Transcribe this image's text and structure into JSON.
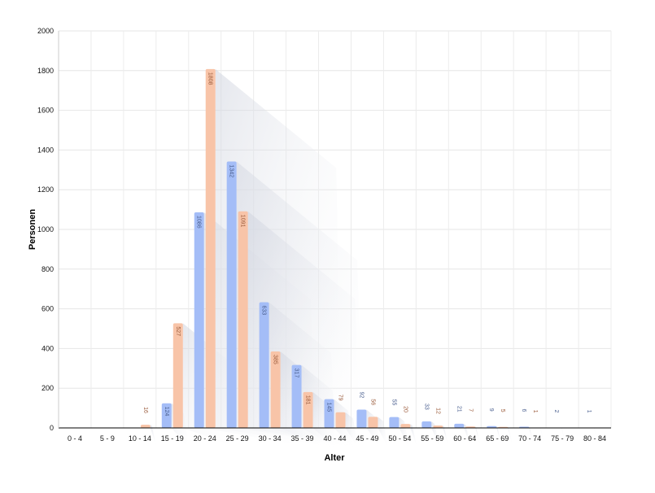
{
  "chart_data": {
    "type": "bar",
    "title": "",
    "xlabel": "Alter",
    "ylabel": "Personen",
    "ylim": [
      0,
      2000
    ],
    "yticks": [
      0,
      200,
      400,
      600,
      800,
      1000,
      1200,
      1400,
      1600,
      1800,
      2000
    ],
    "grid": true,
    "legend": "none",
    "categories": [
      "0 - 4",
      "5 - 9",
      "10 - 14",
      "15 - 19",
      "20 - 24",
      "25 - 29",
      "30 - 34",
      "35 - 39",
      "40 - 44",
      "45 - 49",
      "50 - 54",
      "55 - 59",
      "60 - 64",
      "65 - 69",
      "70 - 74",
      "75 - 79",
      "80 - 84"
    ],
    "series": [
      {
        "color": "#a4bdf7",
        "label_color": "#4a5f8f",
        "values": [
          0,
          0,
          0,
          124,
          1086,
          1342,
          633,
          317,
          145,
          92,
          55,
          33,
          21,
          9,
          6,
          2,
          1
        ]
      },
      {
        "color": "#f8c4a8",
        "label_color": "#9a5a3a",
        "values": [
          0,
          0,
          16,
          527,
          1808,
          1091,
          385,
          181,
          79,
          56,
          20,
          12,
          7,
          5,
          1,
          0,
          0
        ]
      }
    ]
  }
}
